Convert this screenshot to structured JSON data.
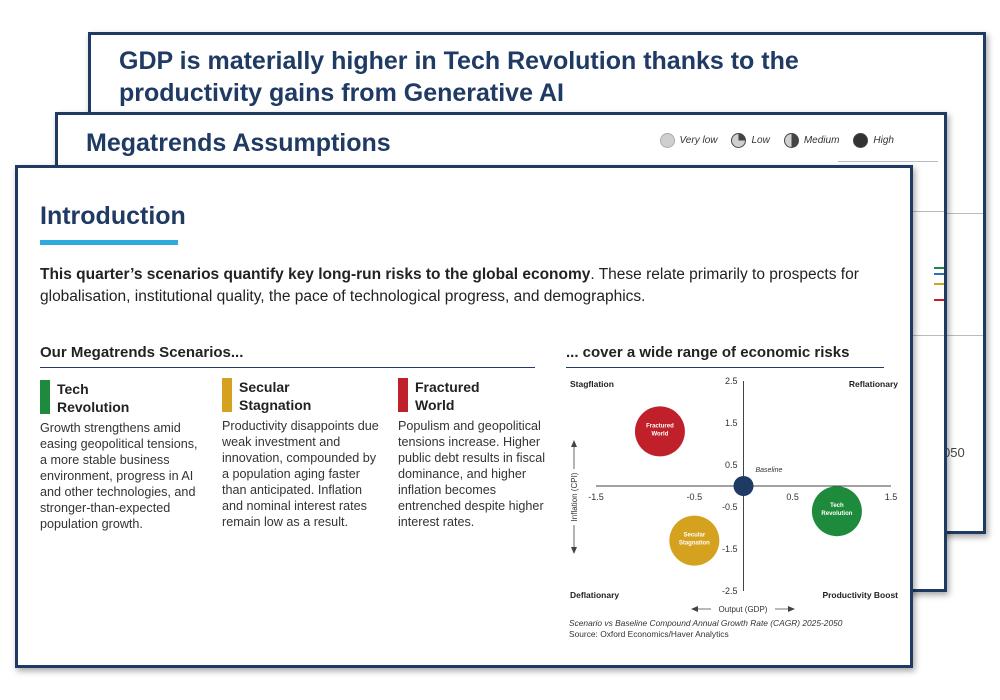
{
  "back_slide": {
    "title": "GDP is materially higher in Tech Revolution thanks to the productivity gains from Generative AI",
    "edge_label": "050"
  },
  "mid_slide": {
    "title": "Megatrends Assumptions",
    "legend": [
      {
        "label": "Very low",
        "icon": "harvey-very-low-icon"
      },
      {
        "label": "Low",
        "icon": "harvey-low-icon"
      },
      {
        "label": "Medium",
        "icon": "harvey-medium-icon"
      },
      {
        "label": "High",
        "icon": "harvey-high-icon"
      }
    ]
  },
  "front_slide": {
    "title": "Introduction",
    "intro_bold": "This quarter’s scenarios quantify key long-run risks to the global economy",
    "intro_rest": ". These relate primarily to prospects for globalisation, institutional quality, the pace of technological progress, and demographics.",
    "scenarios_heading": "Our Megatrends Scenarios...",
    "risks_heading": "... cover a wide range of economic risks",
    "scenarios": [
      {
        "name": "Tech Revolution",
        "color": "#1e8a3c",
        "description": "Growth strengthens amid easing geopolitical tensions, a more stable business environment, progress in AI and other technologies, and stronger-than-expected population growth."
      },
      {
        "name": "Secular Stagnation",
        "color": "#d4a21e",
        "description": "Productivity disappoints due weak investment and innovation, compounded by a population aging faster than anticipated. Inflation and nominal interest rates remain low as a result."
      },
      {
        "name": "Fractured World",
        "color": "#c0202a",
        "description": "Populism and geopolitical tensions increase. Higher public debt results in fiscal dominance, and higher inflation becomes entrenched despite higher interest rates."
      }
    ],
    "footnote_line1": "Scenario vs Baseline Compound Annual Growth Rate (CAGR) 2025-2050",
    "footnote_line2": "Source: Oxford Economics/Haver Analytics"
  },
  "chart_data": {
    "type": "scatter",
    "xlabel": "Output (GDP)",
    "ylabel": "Inflation (CPI)",
    "xlim": [
      -1.5,
      1.5
    ],
    "ylim": [
      -2.5,
      2.5
    ],
    "x_ticks": [
      "-1.5",
      "-0.5",
      "0.5",
      "1.5"
    ],
    "y_ticks": [
      "2.5",
      "1.5",
      "0.5",
      "-0.5",
      "-1.5",
      "-2.5"
    ],
    "quadrants": {
      "top_left": "Stagflation",
      "top_right": "Reflationary",
      "bottom_left": "Deflationary",
      "bottom_right": "Productivity Boost"
    },
    "points": [
      {
        "label": "Fractured World",
        "x": -0.85,
        "y": 1.3,
        "color": "#c0202a",
        "size": "large"
      },
      {
        "label": "Secular Stagnation",
        "x": -0.5,
        "y": -1.3,
        "color": "#d4a21e",
        "size": "large"
      },
      {
        "label": "Tech Revolution",
        "x": 0.95,
        "y": -0.6,
        "color": "#1e8a3c",
        "size": "large"
      },
      {
        "label": "Baseline",
        "x": 0,
        "y": 0,
        "color": "#1f3a63",
        "size": "small"
      }
    ]
  }
}
